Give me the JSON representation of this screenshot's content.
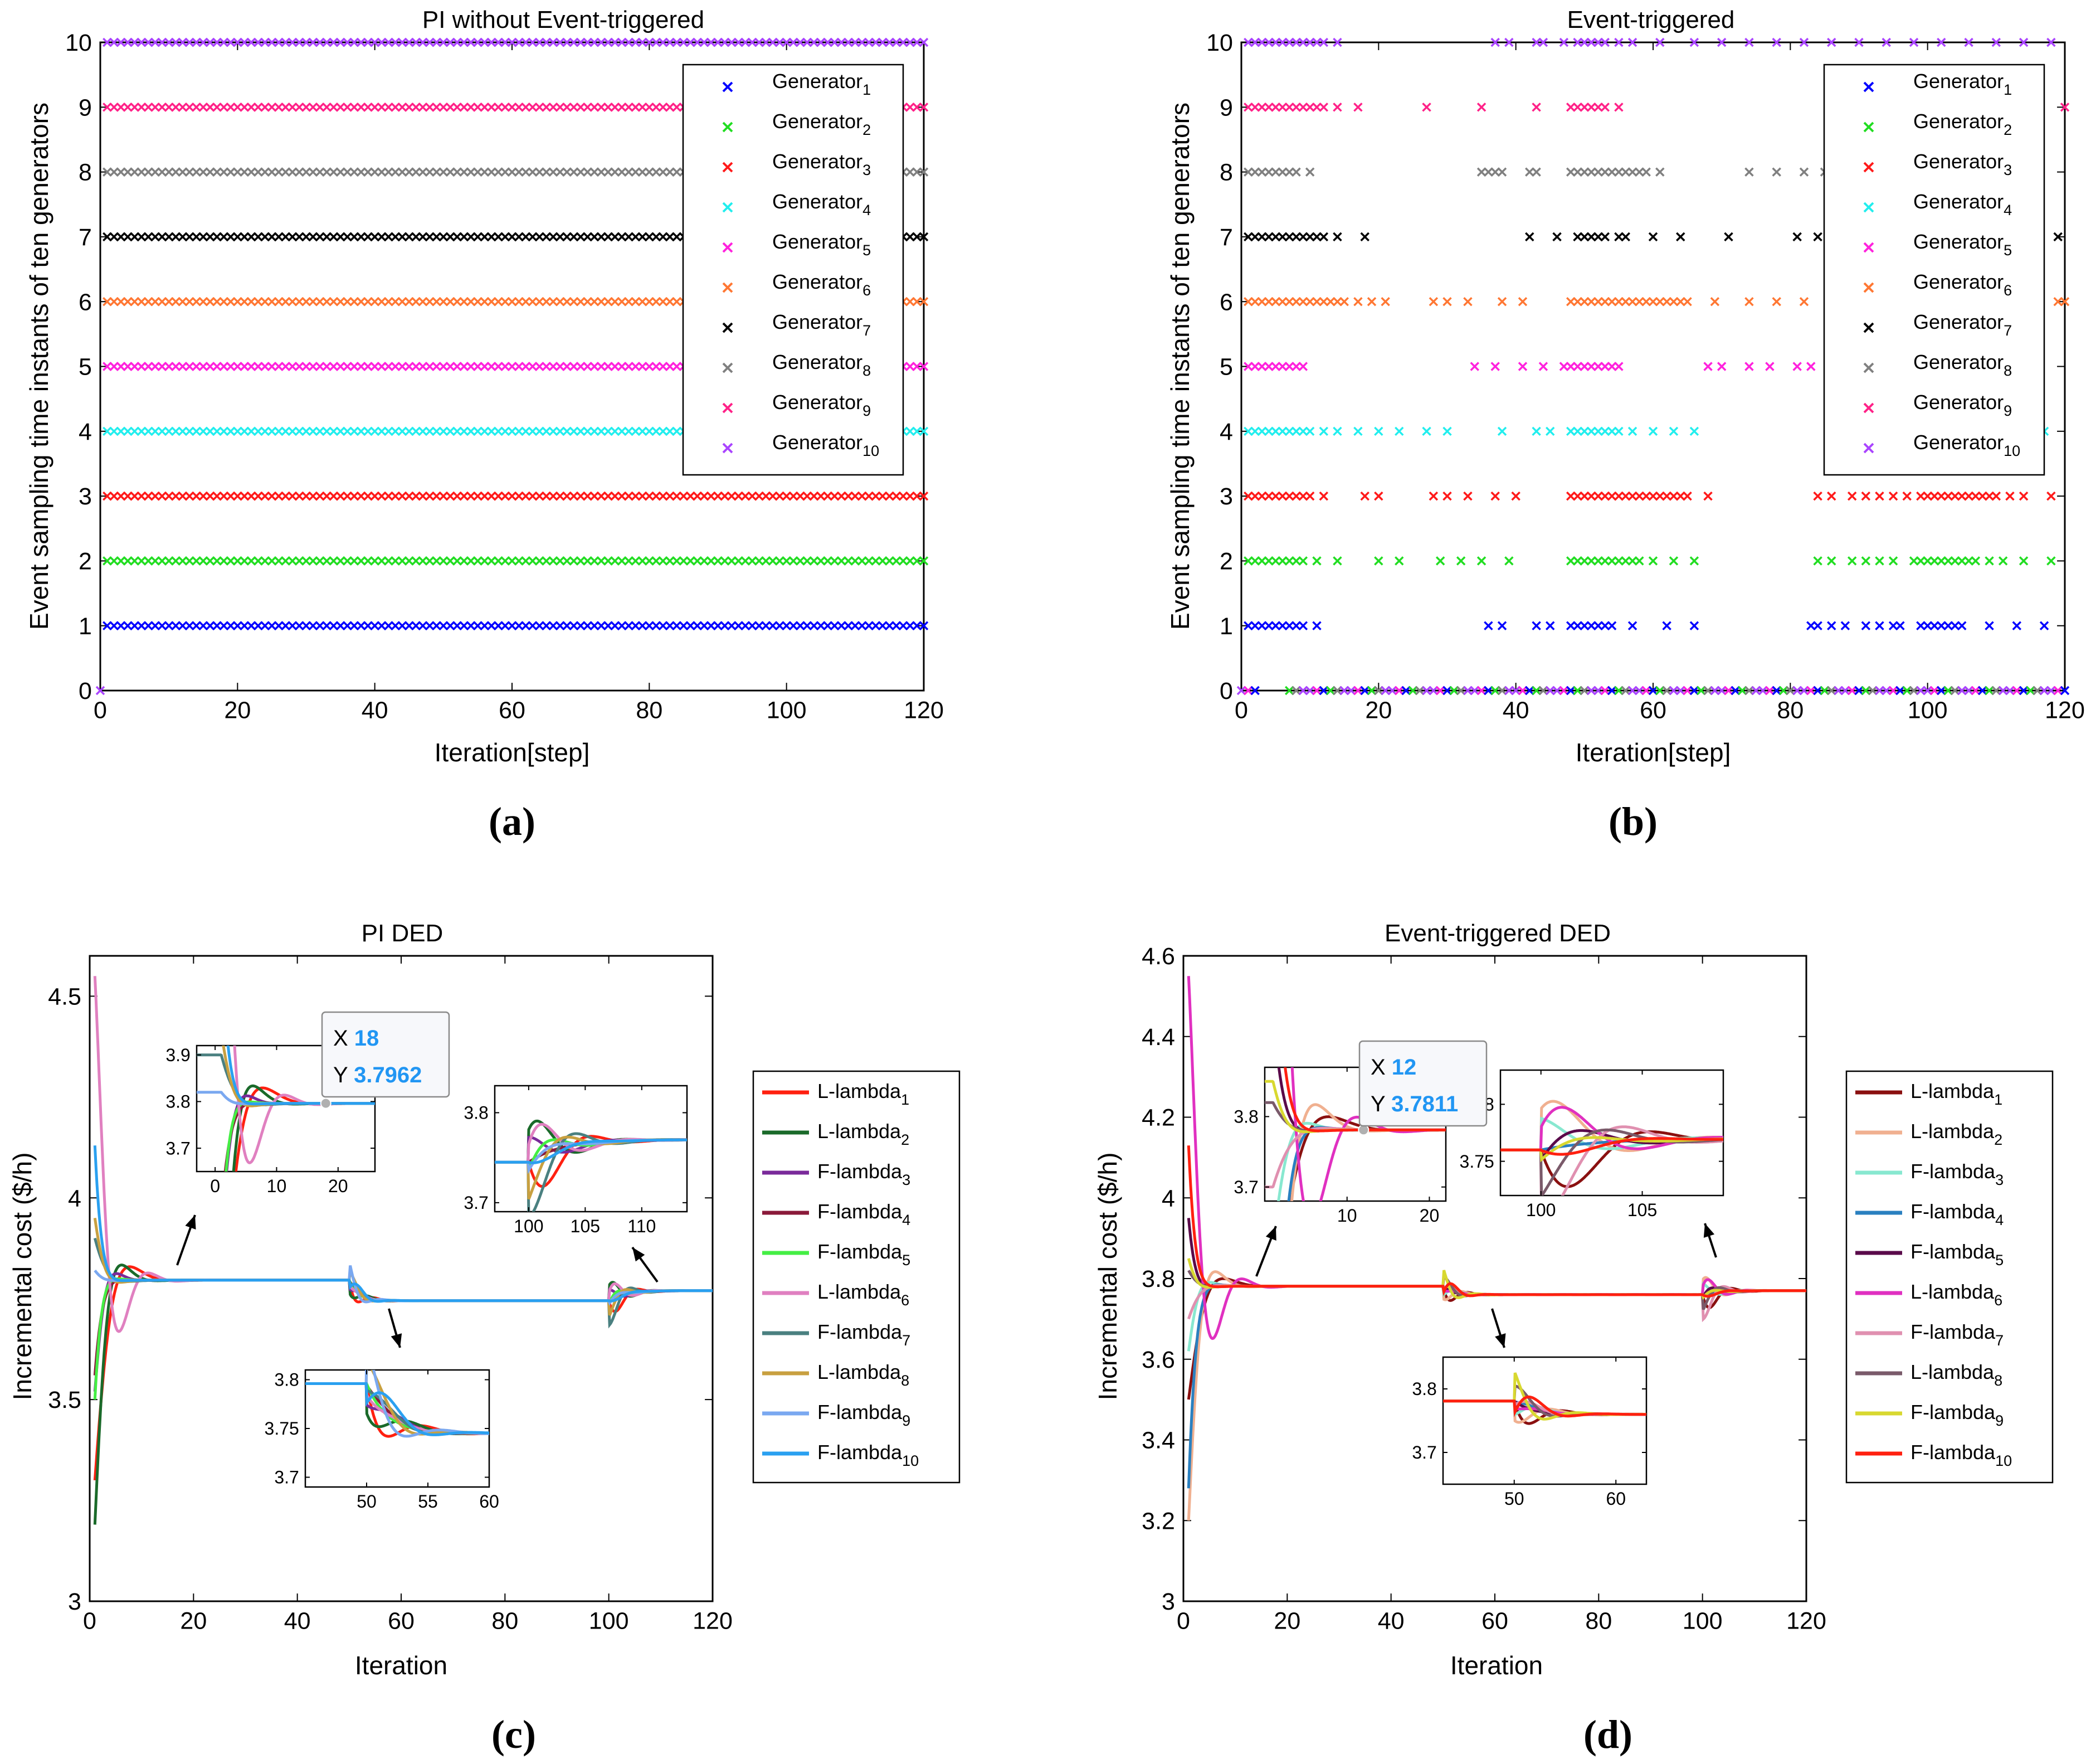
{
  "panel_labels": [
    "(a)",
    "(b)",
    "(c)",
    "(d)"
  ],
  "colors": {
    "gen": [
      "#0000ff",
      "#22dd22",
      "#ff1a1a",
      "#22eeee",
      "#ff22dd",
      "#ff7733",
      "#000000",
      "#808080",
      "#ff2288",
      "#aa44ff"
    ],
    "lam_c": [
      "#ff2010",
      "#1a6a2a",
      "#7a2a9a",
      "#8a1a3a",
      "#44ee44",
      "#e080c0",
      "#4a8080",
      "#c8a040",
      "#7aa8f0",
      "#2aa0f0"
    ],
    "lam_d": [
      "#8a1010",
      "#f0b090",
      "#88e8d0",
      "#2a80c0",
      "#5a0a4a",
      "#e030c0",
      "#e090b0",
      "#7a5a6a",
      "#d8d830",
      "#ff2010"
    ],
    "datatip_value": "#2196f3"
  },
  "chart_data": [
    {
      "type": "scatter",
      "title": "PI without Event-triggered",
      "xlabel": "Iteration[step]",
      "ylabel": "Event sampling  time instants of ten generators",
      "xlim": [
        0,
        120
      ],
      "ylim": [
        0,
        10
      ],
      "xticks": [
        0,
        20,
        40,
        60,
        80,
        100,
        120
      ],
      "yticks": [
        0,
        1,
        2,
        3,
        4,
        5,
        6,
        7,
        8,
        9,
        10
      ],
      "legend_position": "top-right",
      "marker": "x",
      "legend": [
        {
          "base": "Generator",
          "sub": "1"
        },
        {
          "base": "Generator",
          "sub": "2"
        },
        {
          "base": "Generator",
          "sub": "3"
        },
        {
          "base": "Generator",
          "sub": "4"
        },
        {
          "base": "Generator",
          "sub": "5"
        },
        {
          "base": "Generator",
          "sub": "6"
        },
        {
          "base": "Generator",
          "sub": "7"
        },
        {
          "base": "Generator",
          "sub": "8"
        },
        {
          "base": "Generator",
          "sub": "9"
        },
        {
          "base": "Generator",
          "sub": "10"
        }
      ],
      "series": [
        {
          "level": 1,
          "trigger_steps": "every step 1-120"
        },
        {
          "level": 2,
          "trigger_steps": "every step 1-120"
        },
        {
          "level": 3,
          "trigger_steps": "every step 1-120"
        },
        {
          "level": 4,
          "trigger_steps": "every step 1-120"
        },
        {
          "level": 5,
          "trigger_steps": "every step 1-120"
        },
        {
          "level": 6,
          "trigger_steps": "every step 1-120"
        },
        {
          "level": 7,
          "trigger_steps": "every step 1-120"
        },
        {
          "level": 8,
          "trigger_steps": "every step 1-120"
        },
        {
          "level": 9,
          "trigger_steps": "every step 1-120"
        },
        {
          "level": 10,
          "trigger_steps": "every step 1-120"
        }
      ],
      "zero_points": [
        0
      ]
    },
    {
      "type": "scatter",
      "title": "Event-triggered",
      "xlabel": "Iteration[step]",
      "ylabel": "Event sampling  time instants of ten generators",
      "xlim": [
        0,
        120
      ],
      "ylim": [
        0,
        10
      ],
      "xticks": [
        0,
        20,
        40,
        60,
        80,
        100,
        120
      ],
      "yticks": [
        0,
        1,
        2,
        3,
        4,
        5,
        6,
        7,
        8,
        9,
        10
      ],
      "legend_position": "top-right",
      "marker": "x",
      "legend": [
        {
          "base": "Generator",
          "sub": "1"
        },
        {
          "base": "Generator",
          "sub": "2"
        },
        {
          "base": "Generator",
          "sub": "3"
        },
        {
          "base": "Generator",
          "sub": "4"
        },
        {
          "base": "Generator",
          "sub": "5"
        },
        {
          "base": "Generator",
          "sub": "6"
        },
        {
          "base": "Generator",
          "sub": "7"
        },
        {
          "base": "Generator",
          "sub": "8"
        },
        {
          "base": "Generator",
          "sub": "9"
        },
        {
          "base": "Generator",
          "sub": "10"
        }
      ],
      "series": [
        {
          "level": 1,
          "x": [
            1,
            2,
            3,
            4,
            5,
            6,
            7,
            8,
            9,
            11,
            36,
            38,
            43,
            45,
            48,
            49,
            50,
            51,
            52,
            53,
            54,
            57,
            62,
            66,
            83,
            84,
            86,
            88,
            91,
            93,
            95,
            96,
            99,
            100,
            101,
            102,
            103,
            104,
            105,
            109,
            113,
            117
          ]
        },
        {
          "level": 2,
          "x": [
            1,
            2,
            3,
            4,
            5,
            6,
            7,
            8,
            9,
            11,
            14,
            20,
            23,
            29,
            32,
            35,
            39,
            48,
            49,
            50,
            51,
            52,
            53,
            54,
            55,
            56,
            57,
            58,
            60,
            63,
            66,
            84,
            86,
            89,
            91,
            93,
            95,
            98,
            99,
            100,
            101,
            102,
            103,
            104,
            105,
            106,
            107,
            109,
            111,
            114,
            118
          ]
        },
        {
          "level": 3,
          "x": [
            1,
            2,
            3,
            4,
            5,
            6,
            7,
            8,
            9,
            10,
            12,
            18,
            20,
            28,
            30,
            33,
            37,
            40,
            48,
            49,
            50,
            51,
            52,
            53,
            54,
            55,
            56,
            57,
            58,
            59,
            60,
            61,
            62,
            63,
            64,
            65,
            68,
            84,
            86,
            89,
            91,
            93,
            95,
            97,
            99,
            100,
            101,
            102,
            103,
            104,
            105,
            106,
            107,
            108,
            109,
            110,
            112,
            114,
            118
          ]
        },
        {
          "level": 4,
          "x": [
            1,
            2,
            3,
            4,
            5,
            6,
            7,
            8,
            9,
            10,
            12,
            14,
            17,
            20,
            23,
            27,
            30,
            38,
            43,
            45,
            48,
            49,
            50,
            51,
            52,
            53,
            54,
            55,
            57,
            60,
            63,
            66,
            110,
            117
          ]
        },
        {
          "level": 5,
          "x": [
            1,
            2,
            3,
            4,
            5,
            6,
            7,
            8,
            9,
            34,
            37,
            41,
            44,
            47,
            48,
            49,
            50,
            51,
            52,
            53,
            54,
            55,
            68,
            70,
            74,
            77,
            81,
            83,
            86,
            91,
            96,
            101,
            104,
            108,
            112,
            116
          ]
        },
        {
          "level": 6,
          "x": [
            1,
            2,
            3,
            4,
            5,
            6,
            7,
            8,
            9,
            10,
            11,
            12,
            13,
            14,
            15,
            17,
            19,
            21,
            28,
            30,
            33,
            38,
            41,
            48,
            49,
            50,
            51,
            52,
            53,
            54,
            55,
            56,
            57,
            58,
            59,
            60,
            61,
            62,
            63,
            64,
            65,
            69,
            74,
            78,
            82,
            86,
            90,
            94,
            98,
            102,
            106,
            110,
            113,
            115,
            119,
            120
          ]
        },
        {
          "level": 7,
          "x": [
            1,
            2,
            3,
            4,
            5,
            6,
            7,
            8,
            9,
            10,
            11,
            12,
            14,
            18,
            42,
            46,
            49,
            50,
            51,
            52,
            53,
            55,
            56,
            60,
            64,
            71,
            81,
            84,
            87,
            91,
            95,
            100,
            104,
            108,
            113,
            119
          ]
        },
        {
          "level": 8,
          "x": [
            1,
            2,
            3,
            4,
            5,
            6,
            7,
            8,
            10,
            35,
            36,
            37,
            38,
            42,
            43,
            48,
            49,
            50,
            51,
            52,
            53,
            54,
            55,
            56,
            57,
            58,
            59,
            61,
            74,
            78,
            82,
            85,
            88,
            92,
            96,
            100,
            104,
            108,
            112,
            116
          ]
        },
        {
          "level": 9,
          "x": [
            1,
            2,
            3,
            4,
            5,
            6,
            7,
            8,
            9,
            10,
            11,
            12,
            14,
            17,
            27,
            35,
            43,
            48,
            49,
            50,
            51,
            52,
            53,
            55,
            120
          ]
        },
        {
          "level": 10,
          "x": [
            1,
            2,
            3,
            4,
            5,
            6,
            7,
            8,
            9,
            10,
            11,
            12,
            14,
            37,
            39,
            43,
            44,
            47,
            49,
            50,
            51,
            52,
            53,
            55,
            57,
            61,
            66,
            70,
            74,
            78,
            82,
            86,
            90,
            94,
            98,
            102,
            106,
            110,
            114,
            118
          ]
        }
      ],
      "zero_points": [
        0,
        1,
        2,
        7,
        8,
        9,
        10,
        11,
        12,
        13,
        14,
        15,
        16,
        17,
        18,
        19,
        20,
        21,
        22,
        23,
        24,
        25,
        26,
        27,
        28,
        29,
        30,
        31,
        32,
        33,
        34,
        35,
        36,
        37,
        38,
        39,
        40,
        41,
        42,
        43,
        44,
        45,
        46,
        47,
        48,
        49,
        50,
        51,
        52,
        53,
        54,
        55,
        56,
        57,
        58,
        59,
        60,
        61,
        62,
        63,
        64,
        65,
        66,
        67,
        68,
        69,
        70,
        71,
        72,
        73,
        74,
        75,
        76,
        77,
        78,
        79,
        80,
        81,
        82,
        83,
        84,
        85,
        86,
        87,
        88,
        89,
        90,
        91,
        92,
        93,
        94,
        95,
        96,
        97,
        98,
        99,
        100,
        101,
        102,
        103,
        104,
        105,
        106,
        107,
        108,
        109,
        110,
        111,
        112,
        113,
        114,
        115,
        116,
        117,
        118,
        119,
        120
      ]
    },
    {
      "type": "line",
      "title": "PI DED",
      "xlabel": "Iteration",
      "ylabel": "Incremental cost ($/h)",
      "xlim": [
        0,
        120
      ],
      "ylim": [
        3,
        4.6
      ],
      "xticks": [
        0,
        20,
        40,
        60,
        80,
        100,
        120
      ],
      "yticks": [
        3,
        3.5,
        4,
        4.5
      ],
      "ytick_labels": [
        "3",
        "3.5",
        "4",
        "4.5"
      ],
      "legend_position": "outside-right",
      "legend": [
        {
          "base": "L-lambda",
          "sub": "1"
        },
        {
          "base": "L-lambda",
          "sub": "2"
        },
        {
          "base": "F-lambda",
          "sub": "3"
        },
        {
          "base": "F-lambda",
          "sub": "4"
        },
        {
          "base": "F-lambda",
          "sub": "5"
        },
        {
          "base": "L-lambda",
          "sub": "6"
        },
        {
          "base": "F-lambda",
          "sub": "7"
        },
        {
          "base": "L-lambda",
          "sub": "8"
        },
        {
          "base": "F-lambda",
          "sub": "9"
        },
        {
          "base": "F-lambda",
          "sub": "10"
        }
      ],
      "settle": [
        [
          0,
          3.796
        ],
        [
          50,
          3.745
        ],
        [
          100,
          3.77
        ]
      ],
      "start_values": [
        3.3,
        3.19,
        3.52,
        3.56,
        3.5,
        4.55,
        3.9,
        3.95,
        3.82,
        4.13
      ],
      "insets": [
        {
          "xlim": [
            -3,
            26
          ],
          "ylim": [
            3.65,
            3.92
          ],
          "xticks": [
            0,
            10,
            20
          ],
          "yticks": [
            3.7,
            3.8,
            3.9
          ],
          "ytick_labels": [
            "3.7",
            "3.8",
            "3.9"
          ]
        },
        {
          "xlim": [
            97,
            114
          ],
          "ylim": [
            3.69,
            3.83
          ],
          "xticks": [
            100,
            105,
            110
          ],
          "yticks": [
            3.7,
            3.8
          ],
          "ytick_labels": [
            "3.7",
            "3.8"
          ]
        },
        {
          "xlim": [
            45,
            60
          ],
          "ylim": [
            3.69,
            3.81
          ],
          "xticks": [
            50,
            55,
            60
          ],
          "yticks": [
            3.7,
            3.75,
            3.8
          ],
          "ytick_labels": [
            "3.7",
            "3.75",
            "3.8"
          ]
        }
      ],
      "datatip": {
        "x_label": "X",
        "x_value": "18",
        "y_label": "Y",
        "y_value": "3.7962",
        "x": 18,
        "y": 3.7962
      }
    },
    {
      "type": "line",
      "title": "Event-triggered DED",
      "xlabel": "Iteration",
      "ylabel": "Incremental cost ($/h)",
      "xlim": [
        0,
        120
      ],
      "ylim": [
        3,
        4.6
      ],
      "xticks": [
        0,
        20,
        40,
        60,
        80,
        100,
        120
      ],
      "yticks": [
        3,
        3.2,
        3.4,
        3.6,
        3.8,
        4,
        4.2,
        4.4,
        4.6
      ],
      "ytick_labels": [
        "3",
        "3.2",
        "3.4",
        "3.6",
        "3.8",
        "4",
        "4.2",
        "4.4",
        "4.6"
      ],
      "legend_position": "outside-right",
      "legend": [
        {
          "base": "L-lambda",
          "sub": "1"
        },
        {
          "base": "L-lambda",
          "sub": "2"
        },
        {
          "base": "F-lambda",
          "sub": "3"
        },
        {
          "base": "F-lambda",
          "sub": "4"
        },
        {
          "base": "F-lambda",
          "sub": "5"
        },
        {
          "base": "L-lambda",
          "sub": "6"
        },
        {
          "base": "F-lambda",
          "sub": "7"
        },
        {
          "base": "L-lambda",
          "sub": "8"
        },
        {
          "base": "F-lambda",
          "sub": "9"
        },
        {
          "base": "F-lambda",
          "sub": "10"
        }
      ],
      "settle": [
        [
          0,
          3.781
        ],
        [
          50,
          3.76
        ],
        [
          100,
          3.77
        ]
      ],
      "start_values": [
        3.5,
        3.2,
        3.62,
        3.28,
        3.95,
        4.55,
        3.7,
        3.82,
        3.85,
        4.13
      ],
      "insets": [
        {
          "xlim": [
            0,
            22
          ],
          "ylim": [
            3.68,
            3.87
          ],
          "xticks": [
            10,
            20
          ],
          "yticks": [
            3.7,
            3.8
          ],
          "ytick_labels": [
            "3.7",
            "3.8"
          ]
        },
        {
          "xlim": [
            98,
            109
          ],
          "ylim": [
            3.72,
            3.83
          ],
          "xticks": [
            100,
            105
          ],
          "yticks": [
            3.75,
            3.8
          ],
          "ytick_labels": [
            "3.75",
            "3.8"
          ]
        },
        {
          "xlim": [
            43,
            63
          ],
          "ylim": [
            3.65,
            3.85
          ],
          "xticks": [
            50,
            60
          ],
          "yticks": [
            3.7,
            3.8
          ],
          "ytick_labels": [
            "3.7",
            "3.8"
          ]
        }
      ],
      "datatip": {
        "x_label": "X",
        "x_value": "12",
        "y_label": "Y",
        "y_value": "3.7811",
        "x": 12,
        "y": 3.7811
      }
    }
  ]
}
